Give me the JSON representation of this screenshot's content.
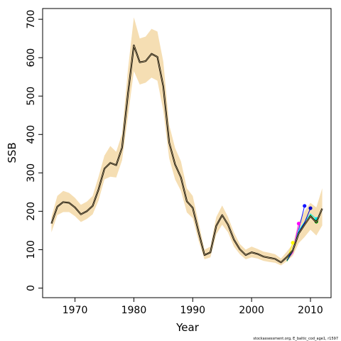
{
  "chart_data": {
    "type": "line",
    "title": "",
    "xlabel": "Year",
    "ylabel": "SSB",
    "xlim": [
      1964.5,
      2013.5
    ],
    "ylim": [
      -25,
      728
    ],
    "x_ticks": [
      1970,
      1980,
      1990,
      2000,
      2010
    ],
    "y_ticks": [
      0,
      100,
      200,
      300,
      400,
      500,
      600,
      700
    ],
    "x_tick_labels": [
      "1970",
      "1980",
      "1990",
      "2000",
      "2010"
    ],
    "y_tick_labels": [
      "0",
      "100",
      "200",
      "300",
      "400",
      "500",
      "600",
      "700"
    ],
    "grid": false,
    "legend": "none",
    "credit": "stockassessment.org, E_baltic_cod_age1, r1597",
    "colors": {
      "band": "#f5deb3",
      "main": "#000000",
      "inner": "#e8c98a",
      "retro": [
        "#1515ff",
        "#ff00ff",
        "#00e5ee",
        "#ffff00",
        "#00cd00",
        "#0000cd",
        "#ff00ff",
        "#00ffff"
      ]
    },
    "x": [
      1966,
      1967,
      1968,
      1969,
      1970,
      1971,
      1972,
      1973,
      1974,
      1975,
      1976,
      1977,
      1978,
      1979,
      1980,
      1981,
      1982,
      1983,
      1984,
      1985,
      1986,
      1987,
      1988,
      1989,
      1990,
      1991,
      1992,
      1993,
      1994,
      1995,
      1996,
      1997,
      1998,
      1999,
      2000,
      2001,
      2002,
      2003,
      2004,
      2005,
      2006,
      2007,
      2008,
      2009,
      2010,
      2011,
      2012
    ],
    "series": [
      {
        "values": [
          168,
          212,
          224,
          222,
          210,
          192,
          200,
          214,
          257,
          311,
          326,
          320,
          366,
          506,
          632,
          588,
          591,
          610,
          602,
          525,
          379,
          322,
          288,
          226,
          209,
          146,
          86,
          93,
          162,
          190,
          165,
          126,
          101,
          86,
          93,
          89,
          82,
          79,
          76,
          67,
          81,
          98,
          142,
          165,
          187,
          171,
          207
        ]
      }
    ],
    "band": {
      "upper": [
        185,
        240,
        253,
        248,
        235,
        217,
        225,
        240,
        290,
        345,
        370,
        355,
        402,
        570,
        705,
        650,
        655,
        675,
        668,
        590,
        425,
        365,
        330,
        260,
        240,
        170,
        100,
        108,
        185,
        215,
        185,
        145,
        115,
        100,
        108,
        102,
        95,
        92,
        88,
        77,
        95,
        115,
        170,
        200,
        222,
        210,
        260
      ],
      "lower": [
        145,
        190,
        198,
        198,
        187,
        172,
        180,
        192,
        228,
        283,
        290,
        288,
        333,
        448,
        565,
        530,
        535,
        548,
        540,
        462,
        338,
        283,
        253,
        197,
        182,
        123,
        75,
        80,
        140,
        165,
        145,
        108,
        88,
        75,
        80,
        77,
        71,
        68,
        66,
        59,
        70,
        84,
        117,
        133,
        152,
        137,
        163
      ]
    },
    "retro_series": [
      {
        "x": [
          2006,
          2007,
          2008,
          2009
        ],
        "values": [
          73,
          100,
          152,
          214
        ]
      },
      {
        "x": [
          2006,
          2007,
          2008
        ],
        "values": [
          72,
          92,
          168
        ]
      },
      {
        "x": [
          2006,
          2007,
          2008,
          2009,
          2010,
          2011
        ],
        "values": [
          75,
          99,
          150,
          172,
          193,
          180
        ]
      },
      {
        "x": [
          2006,
          2007
        ],
        "values": [
          72,
          118
        ]
      },
      {
        "x": [
          2006,
          2007,
          2008,
          2009,
          2010,
          2011
        ],
        "values": [
          70,
          96,
          142,
          165,
          190,
          173
        ]
      },
      {
        "x": [
          2006,
          2007,
          2008,
          2009,
          2010
        ],
        "values": [
          72,
          98,
          145,
          170,
          208
        ]
      }
    ]
  }
}
